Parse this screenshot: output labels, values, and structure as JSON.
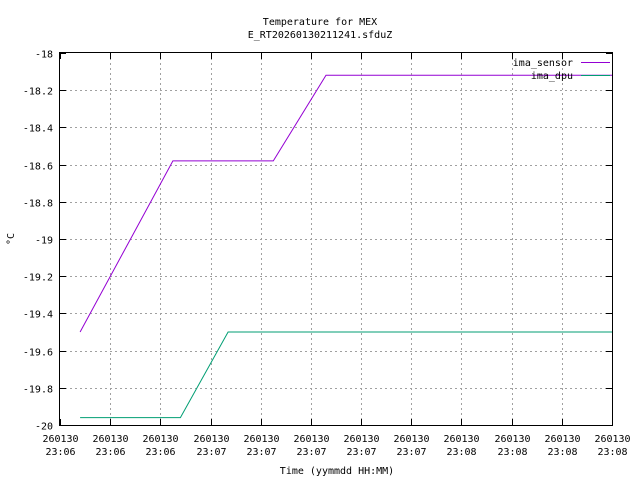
{
  "chart_data": {
    "type": "line",
    "title": "Temperature for MEX",
    "subtitle": "E_RT20260130211241.sfduZ",
    "xlabel": "Time (yymmdd HH:MM)",
    "ylabel": "°C",
    "ylim": [
      -20,
      -18
    ],
    "yticks": [
      "-18",
      "-18.2",
      "-18.4",
      "-18.6",
      "-18.8",
      "-19",
      "-19.2",
      "-19.4",
      "-19.6",
      "-19.8",
      "-20"
    ],
    "yticks_values": [
      -18,
      -18.2,
      -18.4,
      -18.6,
      -18.8,
      -19,
      -19.2,
      -19.4,
      -19.6,
      -19.8,
      -20
    ],
    "xticks": [
      [
        "260130",
        "23:06"
      ],
      [
        "260130",
        "23:06"
      ],
      [
        "260130",
        "23:06"
      ],
      [
        "260130",
        "23:07"
      ],
      [
        "260130",
        "23:07"
      ],
      [
        "260130",
        "23:07"
      ],
      [
        "260130",
        "23:07"
      ],
      [
        "260130",
        "23:07"
      ],
      [
        "260130",
        "23:08"
      ],
      [
        "260130",
        "23:08"
      ],
      [
        "260130",
        "23:08"
      ],
      [
        "260130",
        "23:08"
      ]
    ],
    "xlim_index": [
      0,
      11
    ],
    "grid": true,
    "legend_position": "top-right",
    "series": [
      {
        "name": "ima_sensor",
        "color": "#9400d3",
        "x": [
          0.4,
          2.25,
          4.25,
          5.3,
          11.0
        ],
        "values": [
          -19.5,
          -18.58,
          -18.58,
          -18.12,
          -18.12
        ]
      },
      {
        "name": "ima_dpu",
        "color": "#009e73",
        "x": [
          0.4,
          2.4,
          3.35,
          11.0
        ],
        "values": [
          -19.96,
          -19.96,
          -19.5,
          -19.5
        ]
      }
    ]
  }
}
